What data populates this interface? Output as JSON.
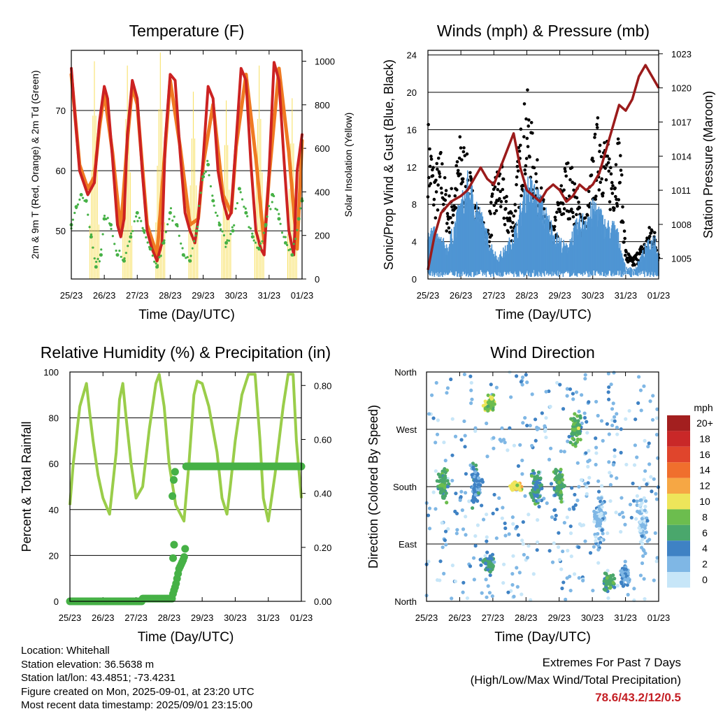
{
  "x_ticks": [
    "25/23",
    "26/23",
    "27/23",
    "28/23",
    "29/23",
    "30/23",
    "31/23",
    "01/23"
  ],
  "colors": {
    "t2m": "#cc2222",
    "t9m": "#ef7a22",
    "td": "#46b146",
    "solar": "#f7df5c",
    "gust": "#000000",
    "wind": "#4f95d3",
    "pressure": "#9b1b1b",
    "rh": "#9acd4a",
    "precip": "#46b146"
  },
  "chart_data": [
    {
      "type": "line",
      "title": "Temperature (F)",
      "xlabel": "Time (Day/UTC)",
      "ylabel": "2m & 9m T (Red, Orange) & 2m Td (Green)",
      "y2label": "Solar Insolation (Yellow)",
      "ylim": [
        42,
        80
      ],
      "yticks": [
        50,
        60,
        70
      ],
      "y2lim": [
        0,
        1050
      ],
      "y2ticks": [
        0,
        200,
        400,
        600,
        800,
        1000
      ],
      "grid": true,
      "series": [
        {
          "key": "t2m",
          "axis": "left",
          "x": [
            0,
            0.1,
            0.25,
            0.5,
            0.7,
            0.85,
            1,
            1.1,
            1.25,
            1.4,
            1.5,
            1.6,
            1.7,
            1.85,
            2,
            2.15,
            2.3,
            2.45,
            2.6,
            2.75,
            2.85,
            3,
            3.15,
            3.3,
            3.45,
            3.6,
            3.75,
            3.85,
            4,
            4.15,
            4.3,
            4.45,
            4.6,
            4.75,
            4.85,
            5,
            5.15,
            5.3,
            5.45,
            5.6,
            5.75,
            5.85,
            6,
            6.15,
            6.3,
            6.45,
            6.6,
            6.75,
            6.85,
            7
          ],
          "y": [
            77,
            70,
            60,
            56,
            58,
            68,
            74,
            72,
            62,
            51,
            49,
            52,
            66,
            75,
            72,
            60,
            50,
            47,
            45,
            48,
            65,
            76,
            75,
            63,
            53,
            50,
            48,
            52,
            62,
            74,
            72,
            60,
            55,
            52,
            53,
            65,
            77,
            75,
            61,
            50,
            47,
            46,
            60,
            78,
            75,
            62,
            50,
            46,
            60,
            66
          ]
        },
        {
          "key": "t9m",
          "axis": "left",
          "x": [
            0,
            0.25,
            0.5,
            0.7,
            0.85,
            1,
            1.25,
            1.5,
            1.7,
            1.85,
            2,
            2.3,
            2.6,
            2.85,
            3,
            3.3,
            3.6,
            3.85,
            4,
            4.3,
            4.6,
            4.85,
            5,
            5.3,
            5.6,
            5.85,
            6,
            6.3,
            6.6,
            6.85,
            7
          ],
          "y": [
            76,
            61,
            57,
            59,
            67,
            73,
            63,
            50,
            65,
            74,
            71,
            51,
            46,
            64,
            75,
            64,
            51,
            52,
            61,
            71,
            56,
            53,
            64,
            76,
            62,
            48,
            59,
            77,
            63,
            47,
            65
          ]
        },
        {
          "key": "td",
          "axis": "left",
          "x": [
            0,
            0.15,
            0.3,
            0.45,
            0.6,
            0.75,
            0.9,
            1,
            1.2,
            1.4,
            1.6,
            1.8,
            2,
            2.2,
            2.4,
            2.6,
            2.8,
            3,
            3.2,
            3.4,
            3.6,
            3.8,
            4,
            4.15,
            4.3,
            4.5,
            4.7,
            4.9,
            5.1,
            5.3,
            5.5,
            5.7,
            5.9,
            6.1,
            6.3,
            6.5,
            6.7,
            6.9,
            7
          ],
          "y": [
            51,
            54,
            56,
            55,
            49,
            44,
            46,
            52,
            51,
            46,
            45,
            49,
            53,
            50,
            47,
            44,
            48,
            53,
            51,
            46,
            45,
            50,
            59,
            61,
            55,
            51,
            48,
            50,
            57,
            53,
            49,
            47,
            51,
            56,
            52,
            48,
            46,
            52,
            55
          ]
        },
        {
          "key": "solar",
          "axis": "right",
          "type": "daily-peaks",
          "peak_day_offset": 0.7,
          "peaks": [
            1000,
            980,
            1040,
            860,
            820,
            980,
            830
          ]
        }
      ]
    },
    {
      "type": "scatter",
      "title": "Winds (mph) & Pressure (mb)",
      "xlabel": "Time (Day/UTC)",
      "ylabel": "Sonic/Prop Wind & Gust (Blue, Black)",
      "y2label": "Station Pressure (Maroon)",
      "ylim": [
        0,
        24.5
      ],
      "yticks": [
        0,
        4,
        8,
        12,
        16,
        20,
        24
      ],
      "y2lim": [
        1003.2,
        1023.3
      ],
      "y2ticks": [
        1005,
        1008,
        1011,
        1014,
        1017,
        1020,
        1023
      ],
      "grid": true,
      "series": [
        {
          "key": "wind",
          "axis": "left",
          "x": [
            0,
            0.3,
            0.6,
            0.9,
            1.2,
            1.5,
            1.8,
            2.1,
            2.4,
            2.7,
            3,
            3.3,
            3.6,
            3.9,
            4.2,
            4.5,
            4.8,
            5.1,
            5.4,
            5.7,
            6,
            6.3,
            6.6,
            6.9,
            7
          ],
          "y": [
            5,
            4,
            3,
            6,
            9,
            7,
            4,
            2,
            3,
            5,
            9,
            8,
            6,
            4,
            3,
            5,
            6,
            7,
            5,
            5,
            1,
            1,
            3,
            4,
            2
          ]
        },
        {
          "key": "gust",
          "axis": "left",
          "x": [
            0,
            0.2,
            0.4,
            0.6,
            0.8,
            1,
            1.2,
            1.4,
            1.6,
            1.8,
            2,
            2.2,
            2.4,
            2.6,
            2.8,
            3,
            3.2,
            3.4,
            3.6,
            3.8,
            4,
            4.2,
            4.4,
            4.6,
            4.8,
            5,
            5.2,
            5.4,
            5.6,
            5.8,
            6,
            6.2,
            6.4,
            6.6,
            6.8,
            7
          ],
          "y": [
            16,
            11,
            13,
            8,
            10,
            15,
            12,
            9,
            6,
            5,
            10,
            12,
            8,
            7,
            15,
            19,
            14,
            10,
            6,
            5,
            9,
            12,
            11,
            8,
            6,
            13,
            17,
            14,
            12,
            15,
            3,
            2,
            3,
            4,
            6,
            3
          ]
        },
        {
          "key": "pressure",
          "axis": "right",
          "type": "line",
          "x": [
            0,
            0.2,
            0.4,
            0.7,
            1,
            1.2,
            1.4,
            1.6,
            1.8,
            2,
            2.2,
            2.4,
            2.6,
            2.8,
            3,
            3.2,
            3.4,
            3.6,
            3.8,
            4,
            4.2,
            4.4,
            4.6,
            4.8,
            5,
            5.2,
            5.4,
            5.6,
            5.8,
            6,
            6.2,
            6.4,
            6.6,
            6.8,
            7
          ],
          "y": [
            1004,
            1007,
            1009,
            1010,
            1010.5,
            1011,
            1012,
            1013,
            1012,
            1011.5,
            1013,
            1014.5,
            1016,
            1013,
            1011,
            1010.5,
            1010,
            1011,
            1011.5,
            1011,
            1010,
            1010.5,
            1011.5,
            1011,
            1011.5,
            1012.5,
            1014.5,
            1016.5,
            1018.5,
            1018,
            1019,
            1021,
            1022,
            1021,
            1020
          ]
        }
      ]
    },
    {
      "type": "line",
      "title": "Relative Humidity (%) & Precipitation (in)",
      "xlabel": "Time (Day/UTC)",
      "ylabel": "Percent & Total Rainfall",
      "ylim": [
        0,
        100
      ],
      "yticks": [
        0,
        20,
        40,
        60,
        80,
        100
      ],
      "y2lim": [
        0,
        0.85
      ],
      "y2ticks": [
        "0.00",
        "0.20",
        "0.40",
        "0.60",
        "0.80"
      ],
      "grid": true,
      "series": [
        {
          "key": "rh",
          "axis": "left",
          "x": [
            0,
            0.1,
            0.3,
            0.5,
            0.6,
            0.7,
            0.85,
            1,
            1.2,
            1.4,
            1.5,
            1.6,
            1.7,
            1.85,
            2,
            2.2,
            2.4,
            2.6,
            2.7,
            2.85,
            3,
            3.2,
            3.45,
            3.6,
            3.75,
            3.85,
            4,
            4.2,
            4.45,
            4.6,
            4.75,
            4.85,
            5,
            5.2,
            5.4,
            5.6,
            5.75,
            5.85,
            6,
            6.2,
            6.45,
            6.6,
            6.75,
            6.85,
            7
          ],
          "y": [
            42,
            60,
            85,
            95,
            82,
            70,
            55,
            45,
            38,
            65,
            88,
            95,
            80,
            60,
            45,
            50,
            75,
            95,
            99,
            85,
            60,
            42,
            35,
            60,
            90,
            96,
            95,
            85,
            65,
            45,
            38,
            50,
            70,
            90,
            99,
            99,
            70,
            45,
            35,
            55,
            85,
            99,
            99,
            70,
            45
          ]
        },
        {
          "key": "precip",
          "axis": "right",
          "type": "cumulative",
          "x": [
            0,
            2.2,
            2.2,
            3.1,
            3.12,
            3.2,
            3.3,
            3.45,
            3.5,
            3.5,
            7
          ],
          "y": [
            0,
            0,
            0.01,
            0.01,
            0.03,
            0.06,
            0.12,
            0.16,
            0.21,
            0.5,
            0.5
          ]
        }
      ]
    },
    {
      "type": "scatter",
      "title": "Wind Direction",
      "xlabel": "Time (Day/UTC)",
      "ylabel": "Direction (Colored By Speed)",
      "yticks": [
        "North",
        "East",
        "South",
        "West",
        "North"
      ],
      "ylim": [
        0,
        360
      ],
      "colorbar": {
        "unit": "mph",
        "labels": [
          "20+",
          "18",
          "16",
          "14",
          "12",
          "10",
          "8",
          "6",
          "4",
          "2",
          "0"
        ],
        "colors": [
          "#a31f1f",
          "#c92828",
          "#e0452c",
          "#f06f2d",
          "#f6a744",
          "#eee55a",
          "#6cbd4e",
          "#4aa76c",
          "#3f82c4",
          "#7fb7e5",
          "#c7e6f8"
        ]
      },
      "clusters": [
        {
          "x": 0.5,
          "y": 180,
          "spread": 60,
          "speed": 6
        },
        {
          "x": 1.5,
          "y": 180,
          "spread": 80,
          "speed": 4
        },
        {
          "x": 1.9,
          "y": 310,
          "spread": 30,
          "speed": 8
        },
        {
          "x": 1.9,
          "y": 60,
          "spread": 30,
          "speed": 5
        },
        {
          "x": 2.7,
          "y": 180,
          "spread": 15,
          "speed": 10
        },
        {
          "x": 3.3,
          "y": 180,
          "spread": 60,
          "speed": 5
        },
        {
          "x": 4.0,
          "y": 180,
          "spread": 60,
          "speed": 6
        },
        {
          "x": 4.5,
          "y": 270,
          "spread": 60,
          "speed": 7
        },
        {
          "x": 5.2,
          "y": 120,
          "spread": 90,
          "speed": 2
        },
        {
          "x": 5.5,
          "y": 30,
          "spread": 30,
          "speed": 6
        },
        {
          "x": 6.0,
          "y": 40,
          "spread": 40,
          "speed": 3
        },
        {
          "x": 6.5,
          "y": 120,
          "spread": 120,
          "speed": 1
        }
      ]
    }
  ],
  "info": {
    "location": "Location: Whitehall",
    "elevation": "Station elevation: 36.5638 m",
    "latlon": "Station lat/lon: 43.4851; -73.4231",
    "created": "Figure created on Mon, 2025-09-01, at 23:20 UTC",
    "timestamp": "Most recent data timestamp: 2025/09/01 23:15:00"
  },
  "extremes": {
    "title": "Extremes For Past 7 Days",
    "subtitle": "(High/Low/Max Wind/Total Precipitation)",
    "values": "78.6/43.2/12/0.5"
  }
}
